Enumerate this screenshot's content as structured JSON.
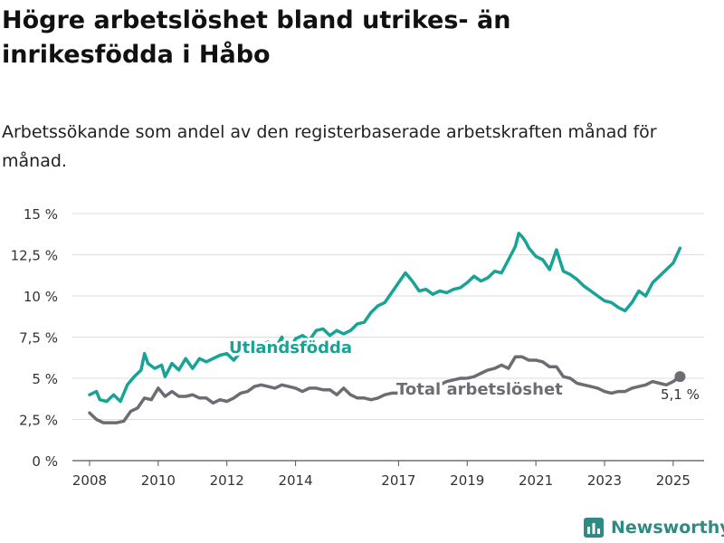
{
  "title": "Högre arbetslöshet bland utrikes- än inrikesfödda i Håbo",
  "subtitle": "Arbetssökande som andel av den registerbaserade arbetskraften månad för månad.",
  "brand": {
    "name": "Newsworthy",
    "icon": "bar-chart-logo-icon"
  },
  "colors": {
    "utlandsfodda": "#17a396",
    "total": "#6d6c73",
    "grid": "#dddddd",
    "axis": "#555555",
    "text": "#333333"
  },
  "chart_data": {
    "type": "line",
    "title": "",
    "xlabel": "",
    "ylabel": "",
    "ylim": [
      0,
      15
    ],
    "xlim": [
      2007.5,
      2025.9
    ],
    "grid": true,
    "x_tick_labels": [
      "2008",
      "2010",
      "2012",
      "2014",
      "2017",
      "2019",
      "2021",
      "2023",
      "2025"
    ],
    "x_tick_values": [
      2008,
      2010,
      2012,
      2014,
      2017,
      2019,
      2021,
      2023,
      2025
    ],
    "y_tick_labels": [
      "0 %",
      "2,5 %",
      "5 %",
      "7,5 %",
      "10 %",
      "12,5 %",
      "15 %"
    ],
    "y_tick_values": [
      0,
      2.5,
      5,
      7.5,
      10,
      12.5,
      15
    ],
    "end_label": "5,1 %",
    "series": [
      {
        "name": "Utlandsfödda",
        "color": "#17a396",
        "x": [
          2008.0,
          2008.2,
          2008.3,
          2008.5,
          2008.7,
          2008.9,
          2009.1,
          2009.3,
          2009.5,
          2009.6,
          2009.7,
          2009.9,
          2010.1,
          2010.2,
          2010.4,
          2010.6,
          2010.8,
          2011.0,
          2011.2,
          2011.4,
          2011.6,
          2011.8,
          2012.0,
          2012.2,
          2012.4,
          2012.6,
          2012.8,
          2013.0,
          2013.2,
          2013.4,
          2013.6,
          2013.8,
          2014.0,
          2014.2,
          2014.4,
          2014.6,
          2014.8,
          2015.0,
          2015.2,
          2015.4,
          2015.6,
          2015.8,
          2016.0,
          2016.2,
          2016.4,
          2016.6,
          2016.8,
          2017.0,
          2017.2,
          2017.4,
          2017.6,
          2017.8,
          2018.0,
          2018.2,
          2018.4,
          2018.6,
          2018.8,
          2019.0,
          2019.2,
          2019.4,
          2019.6,
          2019.8,
          2020.0,
          2020.2,
          2020.4,
          2020.5,
          2020.6,
          2020.7,
          2020.8,
          2021.0,
          2021.2,
          2021.4,
          2021.6,
          2021.8,
          2022.0,
          2022.2,
          2022.4,
          2022.6,
          2022.8,
          2023.0,
          2023.2,
          2023.4,
          2023.6,
          2023.8,
          2024.0,
          2024.2,
          2024.4,
          2024.6,
          2024.8,
          2025.0,
          2025.2
        ],
        "values": [
          4.0,
          4.2,
          3.7,
          3.6,
          4.0,
          3.6,
          4.6,
          5.1,
          5.5,
          6.5,
          5.9,
          5.6,
          5.8,
          5.1,
          5.9,
          5.5,
          6.2,
          5.6,
          6.2,
          6.0,
          6.2,
          6.4,
          6.5,
          6.1,
          6.6,
          7.1,
          7.0,
          7.0,
          7.2,
          6.8,
          7.5,
          6.6,
          7.4,
          7.6,
          7.3,
          7.9,
          8.0,
          7.6,
          7.9,
          7.7,
          7.9,
          8.3,
          8.4,
          9.0,
          9.4,
          9.6,
          10.2,
          10.8,
          11.4,
          10.9,
          10.3,
          10.4,
          10.1,
          10.3,
          10.2,
          10.4,
          10.5,
          10.8,
          11.2,
          10.9,
          11.1,
          11.5,
          11.4,
          12.2,
          13.0,
          13.8,
          13.6,
          13.3,
          12.9,
          12.4,
          12.2,
          11.6,
          12.8,
          11.5,
          11.3,
          11.0,
          10.6,
          10.3,
          10.0,
          9.7,
          9.6,
          9.3,
          9.1,
          9.6,
          10.3,
          10.0,
          10.8,
          11.2,
          11.6,
          12.0,
          12.9
        ]
      },
      {
        "name": "Total arbetslöshet",
        "color": "#6d6c73",
        "x": [
          2008.0,
          2008.2,
          2008.4,
          2008.6,
          2008.8,
          2009.0,
          2009.2,
          2009.4,
          2009.6,
          2009.8,
          2010.0,
          2010.2,
          2010.4,
          2010.6,
          2010.8,
          2011.0,
          2011.2,
          2011.4,
          2011.6,
          2011.8,
          2012.0,
          2012.2,
          2012.4,
          2012.6,
          2012.8,
          2013.0,
          2013.2,
          2013.4,
          2013.6,
          2013.8,
          2014.0,
          2014.2,
          2014.4,
          2014.6,
          2014.8,
          2015.0,
          2015.2,
          2015.4,
          2015.6,
          2015.8,
          2016.0,
          2016.2,
          2016.4,
          2016.6,
          2016.8,
          2017.0,
          2017.2,
          2017.4,
          2017.6,
          2017.8,
          2018.0,
          2018.2,
          2018.4,
          2018.6,
          2018.8,
          2019.0,
          2019.2,
          2019.4,
          2019.6,
          2019.8,
          2020.0,
          2020.2,
          2020.4,
          2020.6,
          2020.8,
          2021.0,
          2021.2,
          2021.4,
          2021.6,
          2021.8,
          2022.0,
          2022.2,
          2022.4,
          2022.6,
          2022.8,
          2023.0,
          2023.2,
          2023.4,
          2023.6,
          2023.8,
          2024.0,
          2024.2,
          2024.4,
          2024.6,
          2024.8,
          2025.0,
          2025.2
        ],
        "values": [
          2.9,
          2.5,
          2.3,
          2.3,
          2.3,
          2.4,
          3.0,
          3.2,
          3.8,
          3.7,
          4.4,
          3.9,
          4.2,
          3.9,
          3.9,
          4.0,
          3.8,
          3.8,
          3.5,
          3.7,
          3.6,
          3.8,
          4.1,
          4.2,
          4.5,
          4.6,
          4.5,
          4.4,
          4.6,
          4.5,
          4.4,
          4.2,
          4.4,
          4.4,
          4.3,
          4.3,
          4.0,
          4.4,
          4.0,
          3.8,
          3.8,
          3.7,
          3.8,
          4.0,
          4.1,
          4.1,
          4.3,
          4.6,
          4.5,
          4.4,
          4.4,
          4.6,
          4.8,
          4.9,
          5.0,
          5.0,
          5.1,
          5.3,
          5.5,
          5.6,
          5.8,
          5.6,
          6.3,
          6.3,
          6.1,
          6.1,
          6.0,
          5.7,
          5.7,
          5.1,
          5.0,
          4.7,
          4.6,
          4.5,
          4.4,
          4.2,
          4.1,
          4.2,
          4.2,
          4.4,
          4.5,
          4.6,
          4.8,
          4.7,
          4.6,
          4.8,
          5.1
        ]
      }
    ]
  }
}
